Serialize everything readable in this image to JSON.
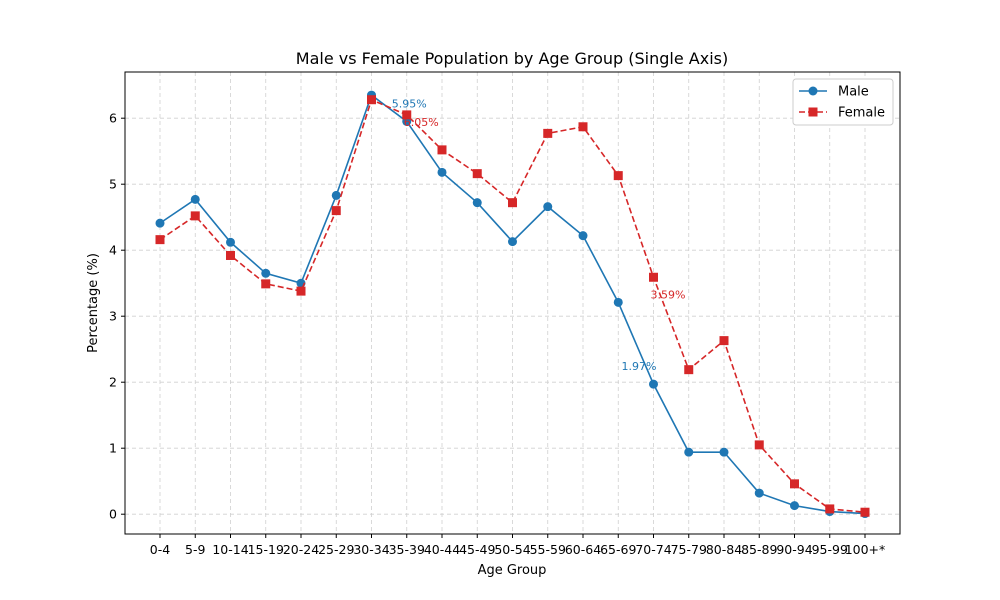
{
  "chart_data": {
    "type": "line",
    "title": "Male vs Female Population by Age Group (Single Axis)",
    "xlabel": "Age Group",
    "ylabel": "Percentage (%)",
    "categories": [
      "0-4",
      "5-9",
      "10-14",
      "15-19",
      "20-24",
      "25-29",
      "30-34",
      "35-39",
      "40-44",
      "45-49",
      "50-54",
      "55-59",
      "60-64",
      "65-69",
      "70-74",
      "75-79",
      "80-84",
      "85-89",
      "90-94",
      "95-99",
      "100+*"
    ],
    "ylim": [
      -0.3,
      6.7
    ],
    "yticks": [
      0,
      1,
      2,
      3,
      4,
      5,
      6
    ],
    "grid": true,
    "legend_position": "top-right",
    "series": [
      {
        "name": "Male",
        "color": "#1f77b4",
        "line_style": "solid",
        "marker": "circle",
        "values": [
          4.41,
          4.77,
          4.12,
          3.65,
          3.5,
          4.83,
          6.35,
          5.95,
          5.18,
          4.72,
          4.13,
          4.66,
          4.22,
          3.21,
          1.97,
          0.94,
          0.94,
          0.32,
          0.13,
          0.04,
          0.01
        ]
      },
      {
        "name": "Female",
        "color": "#d62728",
        "line_style": "dashed",
        "marker": "square",
        "values": [
          4.16,
          4.52,
          3.92,
          3.49,
          3.38,
          4.6,
          6.28,
          6.05,
          5.52,
          5.16,
          4.72,
          5.77,
          5.87,
          5.13,
          3.59,
          2.19,
          2.63,
          1.05,
          0.46,
          0.08,
          0.03
        ]
      }
    ],
    "annotations": [
      {
        "series": 0,
        "index": 7,
        "text": "5.95%",
        "color": "#1f77b4"
      },
      {
        "series": 1,
        "index": 7,
        "text": "6.05%",
        "color": "#d62728"
      },
      {
        "series": 0,
        "index": 14,
        "text": "1.97%",
        "color": "#1f77b4"
      },
      {
        "series": 1,
        "index": 14,
        "text": "3.59%",
        "color": "#d62728"
      }
    ]
  }
}
